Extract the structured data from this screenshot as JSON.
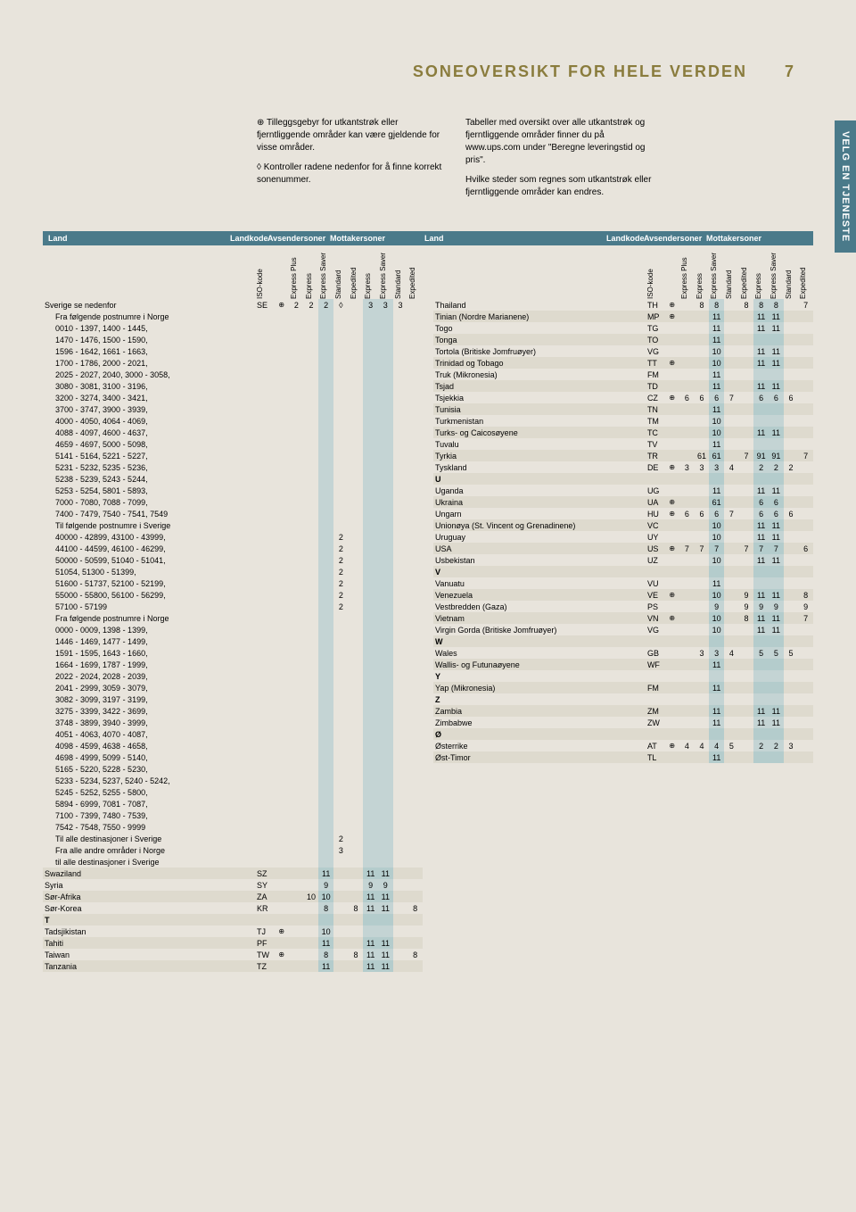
{
  "page_title": "SONEOVERSIKT FOR HELE VERDEN",
  "page_number": "7",
  "side_tab": "VELG EN TJENESTE",
  "info_left_p1": "⊕ Tilleggsgebyr for utkantstrøk eller fjerntliggende områder kan være gjeldende for visse områder.",
  "info_left_p2": "◊ Kontroller radene nedenfor for å finne korrekt sonenummer.",
  "info_right_p1": "Tabeller med oversikt over alle utkantstrøk og fjerntliggende områder finner du på www.ups.com under \"Beregne leveringstid og pris\".",
  "info_right_p2": "Hvilke steder som regnes som utkantstrøk eller fjerntliggende områder kan endres.",
  "hdr_land": "Land",
  "hdr_landkode": "Landkode",
  "hdr_avsender": "Avsendersoner",
  "hdr_mottaker": "Mottakersoner",
  "col_headers": [
    "ISO-kode",
    "",
    "Express Plus",
    "Express",
    "Express Saver",
    "Standard",
    "Expedited",
    "Express",
    "Express Saver",
    "Standard",
    "Expedited"
  ],
  "left_rows": [
    {
      "n": "Sverige se nedenfor",
      "iso": "SE",
      "e": "⊕",
      "v": [
        "2",
        "2",
        "2",
        "◊",
        "",
        "3",
        "3",
        "3",
        ""
      ]
    },
    {
      "n": "Fra følgende postnumre i Norge",
      "sub": 1
    },
    {
      "n": "0010 - 1397, 1400 - 1445,",
      "sub": 1
    },
    {
      "n": "1470 - 1476, 1500 - 1590,",
      "sub": 1
    },
    {
      "n": "1596 - 1642, 1661 - 1663,",
      "sub": 1
    },
    {
      "n": "1700 - 1786, 2000 - 2021,",
      "sub": 1
    },
    {
      "n": "2025 - 2027, 2040, 3000 - 3058,",
      "sub": 1
    },
    {
      "n": "3080 - 3081, 3100 - 3196,",
      "sub": 1
    },
    {
      "n": "3200 - 3274, 3400 - 3421,",
      "sub": 1
    },
    {
      "n": "3700 - 3747, 3900 - 3939,",
      "sub": 1
    },
    {
      "n": "4000 - 4050, 4064 - 4069,",
      "sub": 1
    },
    {
      "n": "4088 - 4097, 4600 - 4637,",
      "sub": 1
    },
    {
      "n": "4659 - 4697, 5000 - 5098,",
      "sub": 1
    },
    {
      "n": "5141 - 5164, 5221 - 5227,",
      "sub": 1
    },
    {
      "n": "5231 - 5232, 5235 - 5236,",
      "sub": 1
    },
    {
      "n": "5238 - 5239, 5243 - 5244,",
      "sub": 1
    },
    {
      "n": "5253 - 5254, 5801 - 5893,",
      "sub": 1
    },
    {
      "n": "7000 - 7080, 7088 - 7099,",
      "sub": 1
    },
    {
      "n": "7400 - 7479, 7540 - 7541, 7549",
      "sub": 1
    },
    {
      "n": "Til følgende postnumre i Sverige",
      "sub": 1
    },
    {
      "n": "40000 - 42899, 43100 - 43999,",
      "sub": 1,
      "v": [
        "",
        "",
        "",
        "2",
        "",
        "",
        "",
        "",
        ""
      ]
    },
    {
      "n": "44100 - 44599, 46100 - 46299,",
      "sub": 1,
      "v": [
        "",
        "",
        "",
        "2",
        "",
        "",
        "",
        "",
        ""
      ]
    },
    {
      "n": "50000 - 50599, 51040 - 51041,",
      "sub": 1,
      "v": [
        "",
        "",
        "",
        "2",
        "",
        "",
        "",
        "",
        ""
      ]
    },
    {
      "n": "51054, 51300 - 51399,",
      "sub": 1,
      "v": [
        "",
        "",
        "",
        "2",
        "",
        "",
        "",
        "",
        ""
      ]
    },
    {
      "n": "51600 - 51737, 52100 - 52199,",
      "sub": 1,
      "v": [
        "",
        "",
        "",
        "2",
        "",
        "",
        "",
        "",
        ""
      ]
    },
    {
      "n": "55000 - 55800, 56100 - 56299,",
      "sub": 1,
      "v": [
        "",
        "",
        "",
        "2",
        "",
        "",
        "",
        "",
        ""
      ]
    },
    {
      "n": "57100 - 57199",
      "sub": 1,
      "v": [
        "",
        "",
        "",
        "2",
        "",
        "",
        "",
        "",
        ""
      ]
    },
    {
      "n": "Fra følgende postnumre i Norge",
      "sub": 1
    },
    {
      "n": "0000 - 0009, 1398 - 1399,",
      "sub": 1
    },
    {
      "n": "1446 - 1469, 1477 - 1499,",
      "sub": 1
    },
    {
      "n": "1591 - 1595, 1643 - 1660,",
      "sub": 1
    },
    {
      "n": "1664 - 1699, 1787 - 1999,",
      "sub": 1
    },
    {
      "n": "2022 - 2024, 2028 - 2039,",
      "sub": 1
    },
    {
      "n": "2041 - 2999, 3059 - 3079,",
      "sub": 1
    },
    {
      "n": "3082 - 3099, 3197 - 3199,",
      "sub": 1
    },
    {
      "n": "3275 - 3399, 3422 - 3699,",
      "sub": 1
    },
    {
      "n": "3748 - 3899, 3940 - 3999,",
      "sub": 1
    },
    {
      "n": "4051 - 4063, 4070 - 4087,",
      "sub": 1
    },
    {
      "n": "4098 - 4599, 4638 - 4658,",
      "sub": 1
    },
    {
      "n": "4698 - 4999, 5099 - 5140,",
      "sub": 1
    },
    {
      "n": "5165 - 5220, 5228 - 5230,",
      "sub": 1
    },
    {
      "n": "5233 - 5234, 5237, 5240 - 5242,",
      "sub": 1
    },
    {
      "n": "5245 - 5252, 5255 - 5800,",
      "sub": 1
    },
    {
      "n": "5894 - 6999, 7081 - 7087,",
      "sub": 1
    },
    {
      "n": "7100 - 7399, 7480 - 7539,",
      "sub": 1
    },
    {
      "n": "7542 - 7548, 7550 - 9999",
      "sub": 1
    },
    {
      "n": "Til alle destinasjoner i Sverige",
      "sub": 1,
      "v": [
        "",
        "",
        "",
        "2",
        "",
        "",
        "",
        "",
        ""
      ]
    },
    {
      "n": "Fra alle andre områder i Norge",
      "sub": 1,
      "v": [
        "",
        "",
        "",
        "3",
        "",
        "",
        "",
        "",
        ""
      ]
    },
    {
      "n": "til alle destinasjoner i Sverige",
      "sub": 1
    },
    {
      "n": "Swaziland",
      "iso": "SZ",
      "alt": 1,
      "v": [
        "",
        "",
        "11",
        "",
        "",
        "11",
        "11",
        "",
        ""
      ]
    },
    {
      "n": "Syria",
      "iso": "SY",
      "v": [
        "",
        "",
        "9",
        "",
        "",
        "9",
        "9",
        "",
        ""
      ]
    },
    {
      "n": "Sør-Afrika",
      "iso": "ZA",
      "alt": 1,
      "v": [
        "",
        "10",
        "10",
        "",
        "",
        "11",
        "11",
        "",
        ""
      ]
    },
    {
      "n": "Sør-Korea",
      "iso": "KR",
      "v": [
        "",
        "",
        "8",
        "",
        "8",
        "11",
        "11",
        "",
        "8"
      ]
    },
    {
      "n": "T",
      "letter": 1,
      "alt": 1
    },
    {
      "n": "Tadsjikistan",
      "iso": "TJ",
      "e": "⊕",
      "v": [
        "",
        "",
        "10",
        "",
        "",
        "",
        "",
        "",
        ""
      ]
    },
    {
      "n": "Tahiti",
      "iso": "PF",
      "alt": 1,
      "v": [
        "",
        "",
        "11",
        "",
        "",
        "11",
        "11",
        "",
        ""
      ]
    },
    {
      "n": "Taiwan",
      "iso": "TW",
      "e": "⊕",
      "v": [
        "",
        "",
        "8",
        "",
        "8",
        "11",
        "11",
        "",
        "8"
      ]
    },
    {
      "n": "Tanzania",
      "iso": "TZ",
      "alt": 1,
      "v": [
        "",
        "",
        "11",
        "",
        "",
        "11",
        "11",
        "",
        ""
      ]
    }
  ],
  "right_rows": [
    {
      "n": "Thailand",
      "iso": "TH",
      "e": "⊕",
      "v": [
        "",
        "8",
        "8",
        "",
        "8",
        "8",
        "8",
        "",
        "7"
      ]
    },
    {
      "n": "Tinian (Nordre Marianene)",
      "iso": "MP",
      "e": "⊕",
      "alt": 1,
      "v": [
        "",
        "",
        "11",
        "",
        "",
        "11",
        "11",
        "",
        ""
      ]
    },
    {
      "n": "Togo",
      "iso": "TG",
      "v": [
        "",
        "",
        "11",
        "",
        "",
        "11",
        "11",
        "",
        ""
      ]
    },
    {
      "n": "Tonga",
      "iso": "TO",
      "alt": 1,
      "v": [
        "",
        "",
        "11",
        "",
        "",
        "",
        "",
        "",
        ""
      ]
    },
    {
      "n": "Tortola (Britiske Jomfruøyer)",
      "iso": "VG",
      "v": [
        "",
        "",
        "10",
        "",
        "",
        "11",
        "11",
        "",
        ""
      ]
    },
    {
      "n": "Trinidad og Tobago",
      "iso": "TT",
      "e": "⊕",
      "alt": 1,
      "v": [
        "",
        "",
        "10",
        "",
        "",
        "11",
        "11",
        "",
        ""
      ]
    },
    {
      "n": "Truk (Mikronesia)",
      "iso": "FM",
      "v": [
        "",
        "",
        "11",
        "",
        "",
        "",
        "",
        "",
        ""
      ]
    },
    {
      "n": "Tsjad",
      "iso": "TD",
      "alt": 1,
      "v": [
        "",
        "",
        "11",
        "",
        "",
        "11",
        "11",
        "",
        ""
      ]
    },
    {
      "n": "Tsjekkia",
      "iso": "CZ",
      "e": "⊕",
      "v": [
        "6",
        "6",
        "6",
        "7",
        "",
        "6",
        "6",
        "6",
        ""
      ]
    },
    {
      "n": "Tunisia",
      "iso": "TN",
      "alt": 1,
      "v": [
        "",
        "",
        "11",
        "",
        "",
        "",
        "",
        "",
        ""
      ]
    },
    {
      "n": "Turkmenistan",
      "iso": "TM",
      "v": [
        "",
        "",
        "10",
        "",
        "",
        "",
        "",
        "",
        ""
      ]
    },
    {
      "n": "Turks- og Caicosøyene",
      "iso": "TC",
      "alt": 1,
      "v": [
        "",
        "",
        "10",
        "",
        "",
        "11",
        "11",
        "",
        ""
      ]
    },
    {
      "n": "Tuvalu",
      "iso": "TV",
      "v": [
        "",
        "",
        "11",
        "",
        "",
        "",
        "",
        "",
        ""
      ]
    },
    {
      "n": "Tyrkia",
      "iso": "TR",
      "alt": 1,
      "v": [
        "",
        "61",
        "61",
        "",
        "7",
        "91",
        "91",
        "",
        "7"
      ]
    },
    {
      "n": "Tyskland",
      "iso": "DE",
      "e": "⊕",
      "v": [
        "3",
        "3",
        "3",
        "4",
        "",
        "2",
        "2",
        "2",
        ""
      ]
    },
    {
      "n": "U",
      "letter": 1,
      "alt": 1
    },
    {
      "n": "Uganda",
      "iso": "UG",
      "v": [
        "",
        "",
        "11",
        "",
        "",
        "11",
        "11",
        "",
        ""
      ]
    },
    {
      "n": "Ukraina",
      "iso": "UA",
      "e": "⊕",
      "alt": 1,
      "v": [
        "",
        "",
        "61",
        "",
        "",
        "6",
        "6",
        "",
        ""
      ]
    },
    {
      "n": "Ungarn",
      "iso": "HU",
      "e": "⊕",
      "v": [
        "6",
        "6",
        "6",
        "7",
        "",
        "6",
        "6",
        "6",
        ""
      ]
    },
    {
      "n": "Unionøya (St. Vincent og Grenadinene)",
      "iso": "VC",
      "alt": 1,
      "v": [
        "",
        "",
        "10",
        "",
        "",
        "11",
        "11",
        "",
        ""
      ]
    },
    {
      "n": "Uruguay",
      "iso": "UY",
      "v": [
        "",
        "",
        "10",
        "",
        "",
        "11",
        "11",
        "",
        ""
      ]
    },
    {
      "n": "USA",
      "iso": "US",
      "e": "⊕",
      "alt": 1,
      "v": [
        "7",
        "7",
        "7",
        "",
        "7",
        "7",
        "7",
        "",
        "6"
      ]
    },
    {
      "n": "Usbekistan",
      "iso": "UZ",
      "v": [
        "",
        "",
        "10",
        "",
        "",
        "11",
        "11",
        "",
        ""
      ]
    },
    {
      "n": "V",
      "letter": 1,
      "alt": 1
    },
    {
      "n": "Vanuatu",
      "iso": "VU",
      "v": [
        "",
        "",
        "11",
        "",
        "",
        "",
        "",
        "",
        ""
      ]
    },
    {
      "n": "Venezuela",
      "iso": "VE",
      "e": "⊕",
      "alt": 1,
      "v": [
        "",
        "",
        "10",
        "",
        "9",
        "11",
        "11",
        "",
        "8"
      ]
    },
    {
      "n": "Vestbredden (Gaza)",
      "iso": "PS",
      "v": [
        "",
        "",
        "9",
        "",
        "9",
        "9",
        "9",
        "",
        "9"
      ]
    },
    {
      "n": "Vietnam",
      "iso": "VN",
      "e": "⊕",
      "alt": 1,
      "v": [
        "",
        "",
        "10",
        "",
        "8",
        "11",
        "11",
        "",
        "7"
      ]
    },
    {
      "n": "Virgin Gorda (Britiske Jomfruøyer)",
      "iso": "VG",
      "v": [
        "",
        "",
        "10",
        "",
        "",
        "11",
        "11",
        "",
        ""
      ]
    },
    {
      "n": "W",
      "letter": 1,
      "alt": 1
    },
    {
      "n": "Wales",
      "iso": "GB",
      "v": [
        "",
        "3",
        "3",
        "4",
        "",
        "5",
        "5",
        "5",
        ""
      ]
    },
    {
      "n": "Wallis- og Futunaøyene",
      "iso": "WF",
      "alt": 1,
      "v": [
        "",
        "",
        "11",
        "",
        "",
        "",
        "",
        "",
        ""
      ]
    },
    {
      "n": "Y",
      "letter": 1
    },
    {
      "n": "Yap (Mikronesia)",
      "iso": "FM",
      "alt": 1,
      "v": [
        "",
        "",
        "11",
        "",
        "",
        "",
        "",
        "",
        ""
      ]
    },
    {
      "n": "Z",
      "letter": 1
    },
    {
      "n": "Zambia",
      "iso": "ZM",
      "alt": 1,
      "v": [
        "",
        "",
        "11",
        "",
        "",
        "11",
        "11",
        "",
        ""
      ]
    },
    {
      "n": "Zimbabwe",
      "iso": "ZW",
      "v": [
        "",
        "",
        "11",
        "",
        "",
        "11",
        "11",
        "",
        ""
      ]
    },
    {
      "n": "Ø",
      "letter": 1,
      "alt": 1
    },
    {
      "n": "Østerrike",
      "iso": "AT",
      "e": "⊕",
      "v": [
        "4",
        "4",
        "4",
        "5",
        "",
        "2",
        "2",
        "3",
        ""
      ]
    },
    {
      "n": "Øst-Timor",
      "iso": "TL",
      "alt": 1,
      "v": [
        "",
        "",
        "11",
        "",
        "",
        "",
        "",
        "",
        ""
      ]
    }
  ],
  "colors": {
    "bg": "#e8e4dc",
    "header_text": "#8a7c3d",
    "bar": "#4a7a8a",
    "shade": "#c4d4d4",
    "alt": "#dedace"
  }
}
